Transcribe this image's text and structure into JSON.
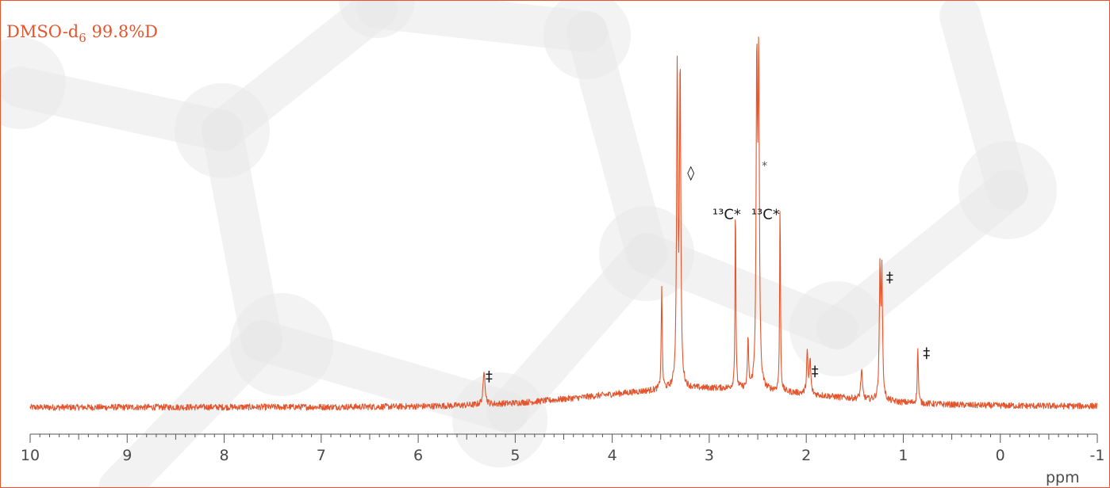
{
  "chart_data": {
    "type": "line",
    "title": "DMSO-d",
    "title_subscript": "6",
    "title_suffix": " 99.8%D",
    "xlabel": "ppm",
    "ylabel": "",
    "xlim": [
      10,
      -1
    ],
    "x_reversed": true,
    "ylim": [
      0,
      1
    ],
    "grid": false,
    "line_color": "#e4552d",
    "frame_color": "#e4552d",
    "ticks": [
      "10",
      "9",
      "8",
      "7",
      "6",
      "5",
      "4",
      "3",
      "2",
      "1",
      "0",
      "-1"
    ],
    "tick_values": [
      10,
      9,
      8,
      7,
      6,
      5,
      4,
      3,
      2,
      1,
      0,
      -1
    ],
    "baseline": {
      "start": 0.06,
      "end": 0.065,
      "hump_center": 3.0,
      "hump_height": 0.07,
      "noise": 0.012
    },
    "peaks": [
      {
        "ppm": 5.32,
        "height": 0.13,
        "width": 0.012
      },
      {
        "ppm": 3.49,
        "height": 0.4,
        "width": 0.006
      },
      {
        "ppm": 3.33,
        "height": 1.2,
        "width": 0.008
      },
      {
        "ppm": 3.3,
        "height": 1.2,
        "width": 0.008
      },
      {
        "ppm": 2.73,
        "height": 0.73,
        "width": 0.005
      },
      {
        "ppm": 2.6,
        "height": 0.2,
        "width": 0.006
      },
      {
        "ppm": 2.51,
        "height": 1.2,
        "width": 0.008
      },
      {
        "ppm": 2.49,
        "height": 1.2,
        "width": 0.008
      },
      {
        "ppm": 2.27,
        "height": 0.74,
        "width": 0.005
      },
      {
        "ppm": 1.99,
        "height": 0.16,
        "width": 0.008
      },
      {
        "ppm": 1.96,
        "height": 0.13,
        "width": 0.008
      },
      {
        "ppm": 1.43,
        "height": 0.11,
        "width": 0.01
      },
      {
        "ppm": 1.24,
        "height": 0.48,
        "width": 0.008
      },
      {
        "ppm": 1.22,
        "height": 0.46,
        "width": 0.008
      },
      {
        "ppm": 0.85,
        "height": 0.22,
        "width": 0.006
      }
    ],
    "annotations": [
      {
        "text": "‡",
        "ppm": 5.27,
        "height": 0.16,
        "style": "annot"
      },
      {
        "text": "◊",
        "ppm": 3.19,
        "height": 0.94,
        "style": "annot"
      },
      {
        "text": "¹³C*",
        "ppm": 2.82,
        "height": 0.78,
        "style": "annot"
      },
      {
        "text": "*",
        "ppm": 2.43,
        "height": 0.97,
        "style": "annot-small"
      },
      {
        "text": "¹³C*",
        "ppm": 2.42,
        "height": 0.78,
        "style": "annot"
      },
      {
        "text": "‡",
        "ppm": 1.91,
        "height": 0.18,
        "style": "annot"
      },
      {
        "text": "‡",
        "ppm": 1.14,
        "height": 0.54,
        "style": "annot"
      },
      {
        "text": "‡",
        "ppm": 0.76,
        "height": 0.25,
        "style": "annot"
      }
    ]
  }
}
